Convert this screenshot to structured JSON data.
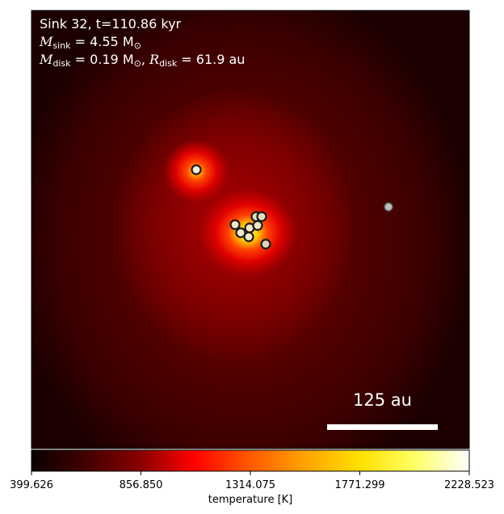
{
  "info": {
    "line1": "Sink 32, t=110.86 kyr",
    "msink_label": "M",
    "msink_sub": "sink",
    "msink_value": " = 4.55 M",
    "msink_unit_sub": "⊙",
    "mdisk_label": "M",
    "mdisk_sub": "disk",
    "mdisk_value": " = 0.19 M",
    "mdisk_unit_sub": "⊙",
    "rdisk_sep": ", ",
    "rdisk_label": "R",
    "rdisk_sub": "disk",
    "rdisk_value": " = 61.9 au"
  },
  "scalebar": {
    "label": "125 au",
    "length_au": 125
  },
  "colorbar": {
    "label": "temperature [K]",
    "ticks": [
      "399.626",
      "856.850",
      "1314.075",
      "1771.299",
      "2228.523"
    ],
    "min": 399.626,
    "max": 2228.523,
    "colormap": "hot"
  },
  "colors": {
    "background_dark": "#1c0000",
    "mid_red": "#6a0000",
    "bright_red": "#ff1a00",
    "hot_yellow": "#ffff40",
    "sink_fill": "#f0e6c8",
    "sink_edge": "#1a1a1a",
    "distant_sink_fill": "#bfbfbf"
  }
}
